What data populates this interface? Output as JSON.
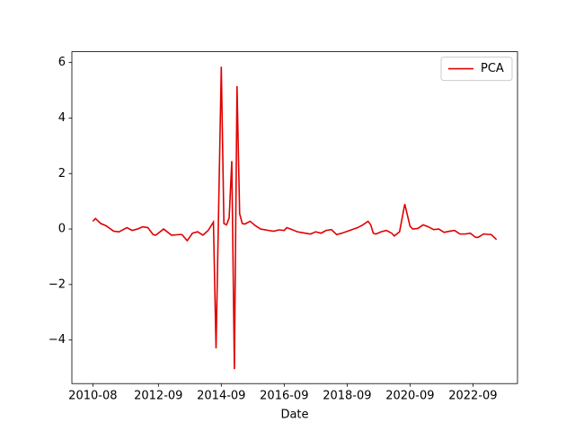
{
  "chart_data": {
    "type": "line",
    "xlabel": "Date",
    "legend": "upper right",
    "xlim": [
      "2009-12",
      "2024-02"
    ],
    "xticks": [
      "2010-08",
      "2012-09",
      "2014-09",
      "2016-09",
      "2018-09",
      "2020-09",
      "2022-09"
    ],
    "ylim": [
      -5.57,
      6.39
    ],
    "yticks": [
      {
        "value": -4,
        "label": "−4"
      },
      {
        "value": -2,
        "label": "−2"
      },
      0,
      2,
      4,
      6
    ],
    "x": [
      "2010-08",
      "2010-09",
      "2010-11",
      "2011-01",
      "2011-04",
      "2011-06",
      "2011-09",
      "2011-11",
      "2012-01",
      "2012-03",
      "2012-05",
      "2012-07",
      "2012-08",
      "2012-11",
      "2013-02",
      "2013-05",
      "2013-06",
      "2013-08",
      "2013-10",
      "2013-12",
      "2014-02",
      "2014-04",
      "2014-06",
      "2014-07",
      "2014-09",
      "2014-10",
      "2014-11",
      "2014-12",
      "2015-01",
      "2015-02",
      "2015-03",
      "2015-04",
      "2015-05",
      "2015-06",
      "2015-08",
      "2015-10",
      "2015-12",
      "2016-03",
      "2016-05",
      "2016-07",
      "2016-09",
      "2016-10",
      "2016-12",
      "2017-02",
      "2017-05",
      "2017-07",
      "2017-09",
      "2017-11",
      "2018-01",
      "2018-03",
      "2018-05",
      "2018-07",
      "2018-10",
      "2019-01",
      "2019-03",
      "2019-05",
      "2019-06",
      "2019-07",
      "2019-08",
      "2019-10",
      "2019-12",
      "2020-02",
      "2020-03",
      "2020-05",
      "2020-07",
      "2020-09",
      "2020-10",
      "2020-12",
      "2021-02",
      "2021-04",
      "2021-06",
      "2021-08",
      "2021-10",
      "2021-12",
      "2022-02",
      "2022-04",
      "2022-06",
      "2022-08",
      "2022-10",
      "2022-11",
      "2023-01",
      "2023-04",
      "2023-06"
    ],
    "series": [
      {
        "name": "PCA",
        "color": "#e00000",
        "values": [
          0.28,
          0.38,
          0.2,
          0.12,
          -0.08,
          -0.1,
          0.05,
          -0.05,
          0.0,
          0.08,
          0.05,
          -0.2,
          -0.22,
          0.0,
          -0.22,
          -0.2,
          -0.2,
          -0.42,
          -0.15,
          -0.1,
          -0.22,
          -0.05,
          0.25,
          -4.3,
          5.85,
          0.2,
          0.15,
          0.4,
          2.45,
          -5.05,
          5.15,
          0.55,
          0.2,
          0.18,
          0.28,
          0.12,
          0.0,
          -0.05,
          -0.08,
          -0.03,
          -0.05,
          0.05,
          -0.02,
          -0.1,
          -0.15,
          -0.18,
          -0.1,
          -0.15,
          -0.05,
          -0.02,
          -0.2,
          -0.15,
          -0.05,
          0.05,
          0.15,
          0.28,
          0.15,
          -0.15,
          -0.18,
          -0.1,
          -0.05,
          -0.15,
          -0.25,
          -0.1,
          0.9,
          0.1,
          0.0,
          0.02,
          0.15,
          0.08,
          -0.02,
          0.0,
          -0.12,
          -0.08,
          -0.05,
          -0.18,
          -0.18,
          -0.15,
          -0.3,
          -0.3,
          -0.18,
          -0.2,
          -0.38
        ]
      }
    ]
  }
}
